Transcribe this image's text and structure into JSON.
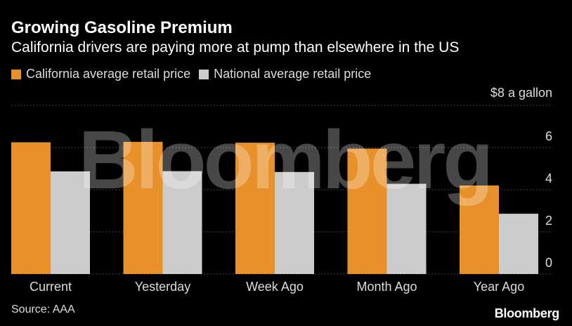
{
  "title": "Growing Gasoline Premium",
  "subtitle": "California drivers are paying more at pump than elsewhere in the US",
  "unit_label": "$8 a gallon",
  "source": "Source: AAA",
  "brand": "Bloomberg",
  "watermark": "Bloomberg",
  "colors": {
    "california": "#E8902A",
    "national": "#CCCCCC",
    "grid": "#5a5a5a",
    "background": "#000000"
  },
  "chart_data": {
    "type": "bar",
    "categories": [
      "Current",
      "Yesterday",
      "Week Ago",
      "Month Ago",
      "Year Ago"
    ],
    "series": [
      {
        "name": "California average retail price",
        "values": [
          6.25,
          6.27,
          6.23,
          5.95,
          4.2
        ]
      },
      {
        "name": "National average retail price",
        "values": [
          4.87,
          4.88,
          4.84,
          4.28,
          2.86
        ]
      }
    ],
    "ylim": [
      0,
      8
    ],
    "yticks": [
      0,
      2,
      4,
      6
    ],
    "ytick_labels": [
      "0",
      "2",
      "4",
      "6"
    ],
    "grid": true,
    "legend": "top-left"
  }
}
